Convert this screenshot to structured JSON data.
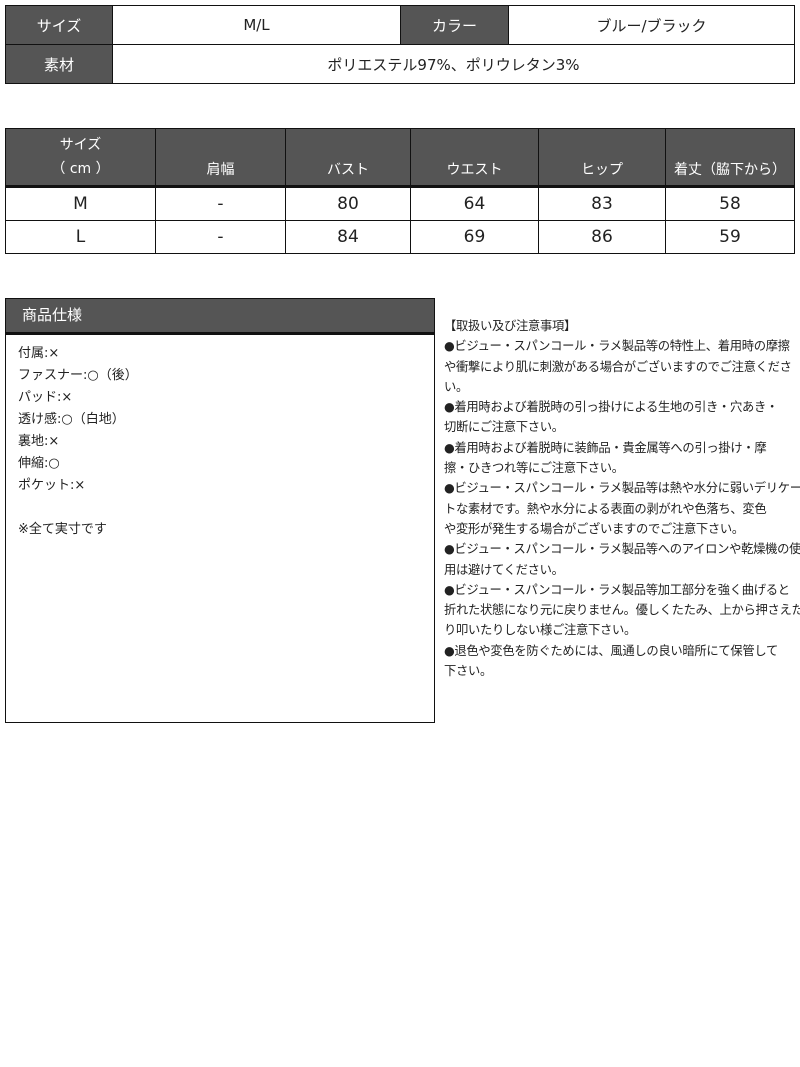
{
  "info_table": {
    "size_label": "サイズ",
    "size_value": "M/L",
    "color_label": "カラー",
    "color_value": "ブルー/ブラック",
    "material_label": "素材",
    "material_value": "ポリエステル97%、ポリウレタン3%"
  },
  "size_table": {
    "headers": [
      "サイズ",
      "（ cm ）",
      "肩幅",
      "バスト",
      "ウエスト",
      "ヒップ",
      "着丈（脇下から）"
    ],
    "rows": [
      [
        "M",
        "-",
        "80",
        "64",
        "83",
        "58"
      ],
      [
        "L",
        "-",
        "84",
        "69",
        "86",
        "59"
      ]
    ]
  },
  "spec": {
    "title": "商品仕様",
    "items": [
      "付属:×",
      "ファスナー:○（後）",
      "パッド:×",
      "透け感:○（白地）",
      "裏地:×",
      "伸縮:○",
      "ポケット:×",
      "",
      "※全て実寸です"
    ]
  },
  "notes": {
    "lines": [
      "【取扱い及び注意事項】",
      "●ビジュー・スパンコール・ラメ製品等の特性上、着用時の摩擦",
      "や衝撃により肌に刺激がある場合がございますのでご注意くださ",
      "い。",
      "●着用時および着脱時の引っ掛けによる生地の引き・穴あき・",
      "切断にご注意下さい。",
      "●着用時および着脱時に装飾品・貴金属等への引っ掛け・摩",
      "擦・ひきつれ等にご注意下さい。",
      "●ビジュー・スパンコール・ラメ製品等は熱や水分に弱いデリケー",
      "トな素材です。熱や水分による表面の剥がれや色落ち、変色",
      "や変形が発生する場合がございますのでご注意下さい。",
      "●ビジュー・スパンコール・ラメ製品等へのアイロンや乾燥機の使",
      "用は避けてください。",
      "●ビジュー・スパンコール・ラメ製品等加工部分を強く曲げると",
      "折れた状態になり元に戻りません。優しくたたみ、上から押さえた",
      "り叩いたりしない様ご注意下さい。",
      "●退色や変色を防ぐためには、風通しの良い暗所にて保管して",
      "下さい。"
    ]
  }
}
